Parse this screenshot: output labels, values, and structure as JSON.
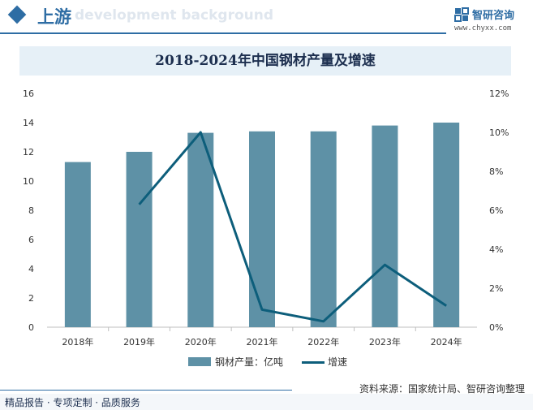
{
  "header": {
    "title": "上游",
    "bg_text": "development background",
    "brand_name": "智研咨询",
    "brand_url": "www.chyxx.com"
  },
  "chart_data": {
    "type": "bar",
    "title": "2018-2024年中国钢材产量及增速",
    "categories": [
      "2018年",
      "2019年",
      "2020年",
      "2021年",
      "2022年",
      "2023年",
      "2024年"
    ],
    "series": [
      {
        "name": "钢材产量：亿吨",
        "type": "bar",
        "axis": "left",
        "color": "#5e91a6",
        "values": [
          11.3,
          12.0,
          13.3,
          13.4,
          13.4,
          13.8,
          14.0
        ]
      },
      {
        "name": "增速",
        "type": "line",
        "axis": "right",
        "color": "#0d5e7b",
        "values": [
          null,
          6.3,
          10.0,
          0.9,
          0.3,
          3.2,
          1.1
        ]
      }
    ],
    "y_left": {
      "min": 0,
      "max": 16,
      "step": 2,
      "ticks": [
        "0",
        "2",
        "4",
        "6",
        "8",
        "10",
        "12",
        "14",
        "16"
      ]
    },
    "y_right": {
      "min": 0,
      "max": 12,
      "step": 2,
      "ticks": [
        "0%",
        "2%",
        "4%",
        "6%",
        "8%",
        "10%",
        "12%"
      ]
    },
    "grid": false,
    "legend_position": "bottom"
  },
  "source_text": "资料来源：国家统计局、智研咨询整理",
  "footer_text": "精品报告 · 专项定制 · 品质服务"
}
